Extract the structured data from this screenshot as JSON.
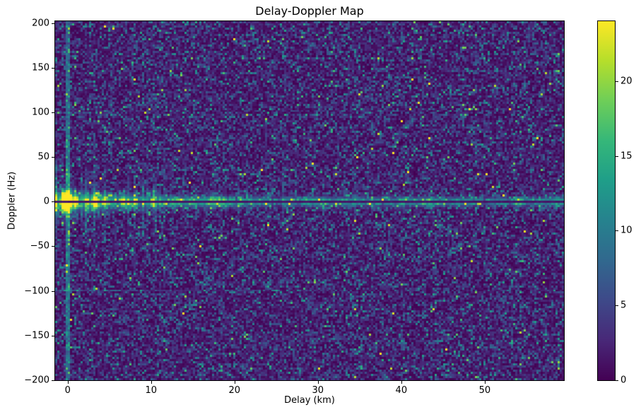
{
  "chart_data": {
    "type": "heatmap",
    "title": "Delay-Doppler Map",
    "xlabel": "Delay (km)",
    "ylabel": "Doppler (Hz)",
    "xlim": [
      -1.5,
      59.5
    ],
    "ylim": [
      -200,
      202
    ],
    "x_ticks": [
      0,
      10,
      20,
      30,
      40,
      50
    ],
    "x_tick_labels": [
      "0",
      "10",
      "20",
      "30",
      "40",
      "50"
    ],
    "y_ticks": [
      200,
      150,
      100,
      50,
      0,
      -50,
      -100,
      -150,
      -200
    ],
    "y_tick_labels": [
      "200",
      "150",
      "100",
      "50",
      "0",
      "−50",
      "−100",
      "−150",
      "−200"
    ],
    "grid_on": false,
    "legend": "none",
    "colorbar": {
      "position": "right",
      "vmin": 0,
      "vmax": 24,
      "ticks": [
        0,
        5,
        10,
        15,
        20
      ],
      "tick_labels": [
        "0",
        "5",
        "10",
        "15",
        "20"
      ]
    },
    "colormap": {
      "name": "viridis",
      "stops": [
        "#440154",
        "#482878",
        "#3e4989",
        "#31688e",
        "#26828e",
        "#1f9e89",
        "#35b779",
        "#6ece58",
        "#b5de2b",
        "#fde725"
      ]
    },
    "grid": {
      "cols": 240,
      "rows": 170
    },
    "seed": 42,
    "features": {
      "background_noise": {
        "distribution": "exponential",
        "mean": 3.2
      },
      "zero_delay_stripe": {
        "delay_km": 0.0,
        "half_width_km": 0.22,
        "added_intensity": 5.0,
        "jitter": 3.0
      },
      "zero_doppler_ridge": {
        "base_intensity": 10.5,
        "peak_extra": 11,
        "decay_km": 12,
        "sigma_hz_near": 7,
        "sigma_hz_far": 3.2,
        "sigma_decay_km": 9,
        "column_gain_min": 0.45,
        "column_gain_spread": 1.3,
        "null_line": {
          "doppler_hz": 0,
          "half_width_hz": 1.2,
          "intensity": 1.0
        },
        "flares": {
          "probability_near": 0.5,
          "probability_far": 0.1,
          "probability_decay_km": 10,
          "sigma_hz_min": 6,
          "sigma_hz_max": 26,
          "intensity": 5.5,
          "intensity_decay_km": 25
        }
      },
      "origin_peak": {
        "delay_km": 0,
        "doppler_hz": 0,
        "core_intensity": 24,
        "core_radius_km": 0.55,
        "core_radius_hz": 7,
        "glow_intensity": 20,
        "glow_sigma_km": 0.55,
        "glow_sigma_hz": 10
      },
      "spur_lines": [
        {
          "doppler_hz": -100,
          "delay_start_km": -1.5,
          "delay_end_km": 32,
          "intensity": 4.5,
          "decay_km": 13
        },
        {
          "doppler_hz": 100,
          "delay_start_km": -1.5,
          "delay_end_km": 6,
          "intensity": 2.2,
          "decay_km": 5
        }
      ]
    }
  }
}
